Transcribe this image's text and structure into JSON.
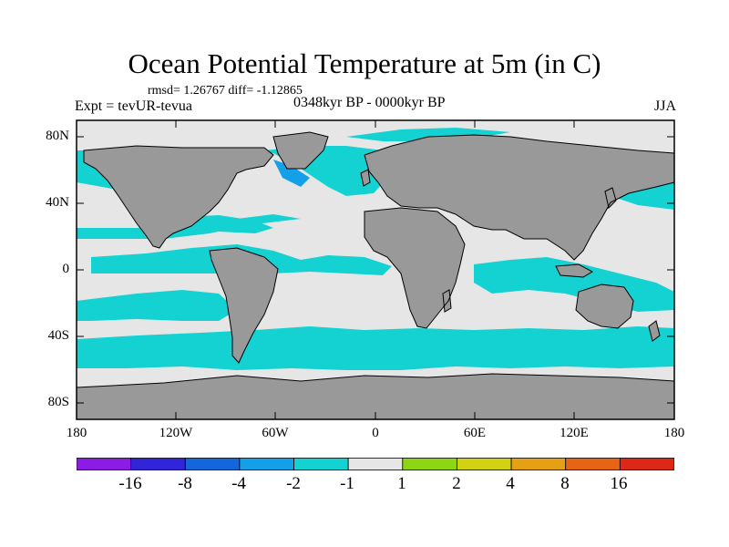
{
  "header": {
    "title": "Ocean Potential Temperature at 5m (in C)",
    "stats": "rmsd= 1.26767  diff= -1.12865",
    "experiment": "Expt = tevUR-tevua",
    "period": "0348kyr BP - 0000kyr BP",
    "season": "JJA"
  },
  "map": {
    "lat_ticks": [
      "80N",
      "40N",
      "0",
      "40S",
      "80S"
    ],
    "lon_ticks": [
      "180",
      "120W",
      "60W",
      "0",
      "60E",
      "120E",
      "180"
    ]
  },
  "colorbar": {
    "labels": [
      "-16",
      "-8",
      "-4",
      "-2",
      "-1",
      "1",
      "2",
      "4",
      "8",
      "16"
    ],
    "colors": [
      "#8c1be6",
      "#3224d8",
      "#1466dc",
      "#14a0e6",
      "#14d2d2",
      "#e6e6e6",
      "#8cd614",
      "#d2d214",
      "#e6a014",
      "#e66414",
      "#dc2814"
    ]
  },
  "colors": {
    "land": "#999999",
    "ocean_neutral": "#e6e6e6",
    "ocean_cool": "#14d2d2",
    "ocean_colder": "#14a0e6",
    "ocean_cold": "#1466dc"
  }
}
